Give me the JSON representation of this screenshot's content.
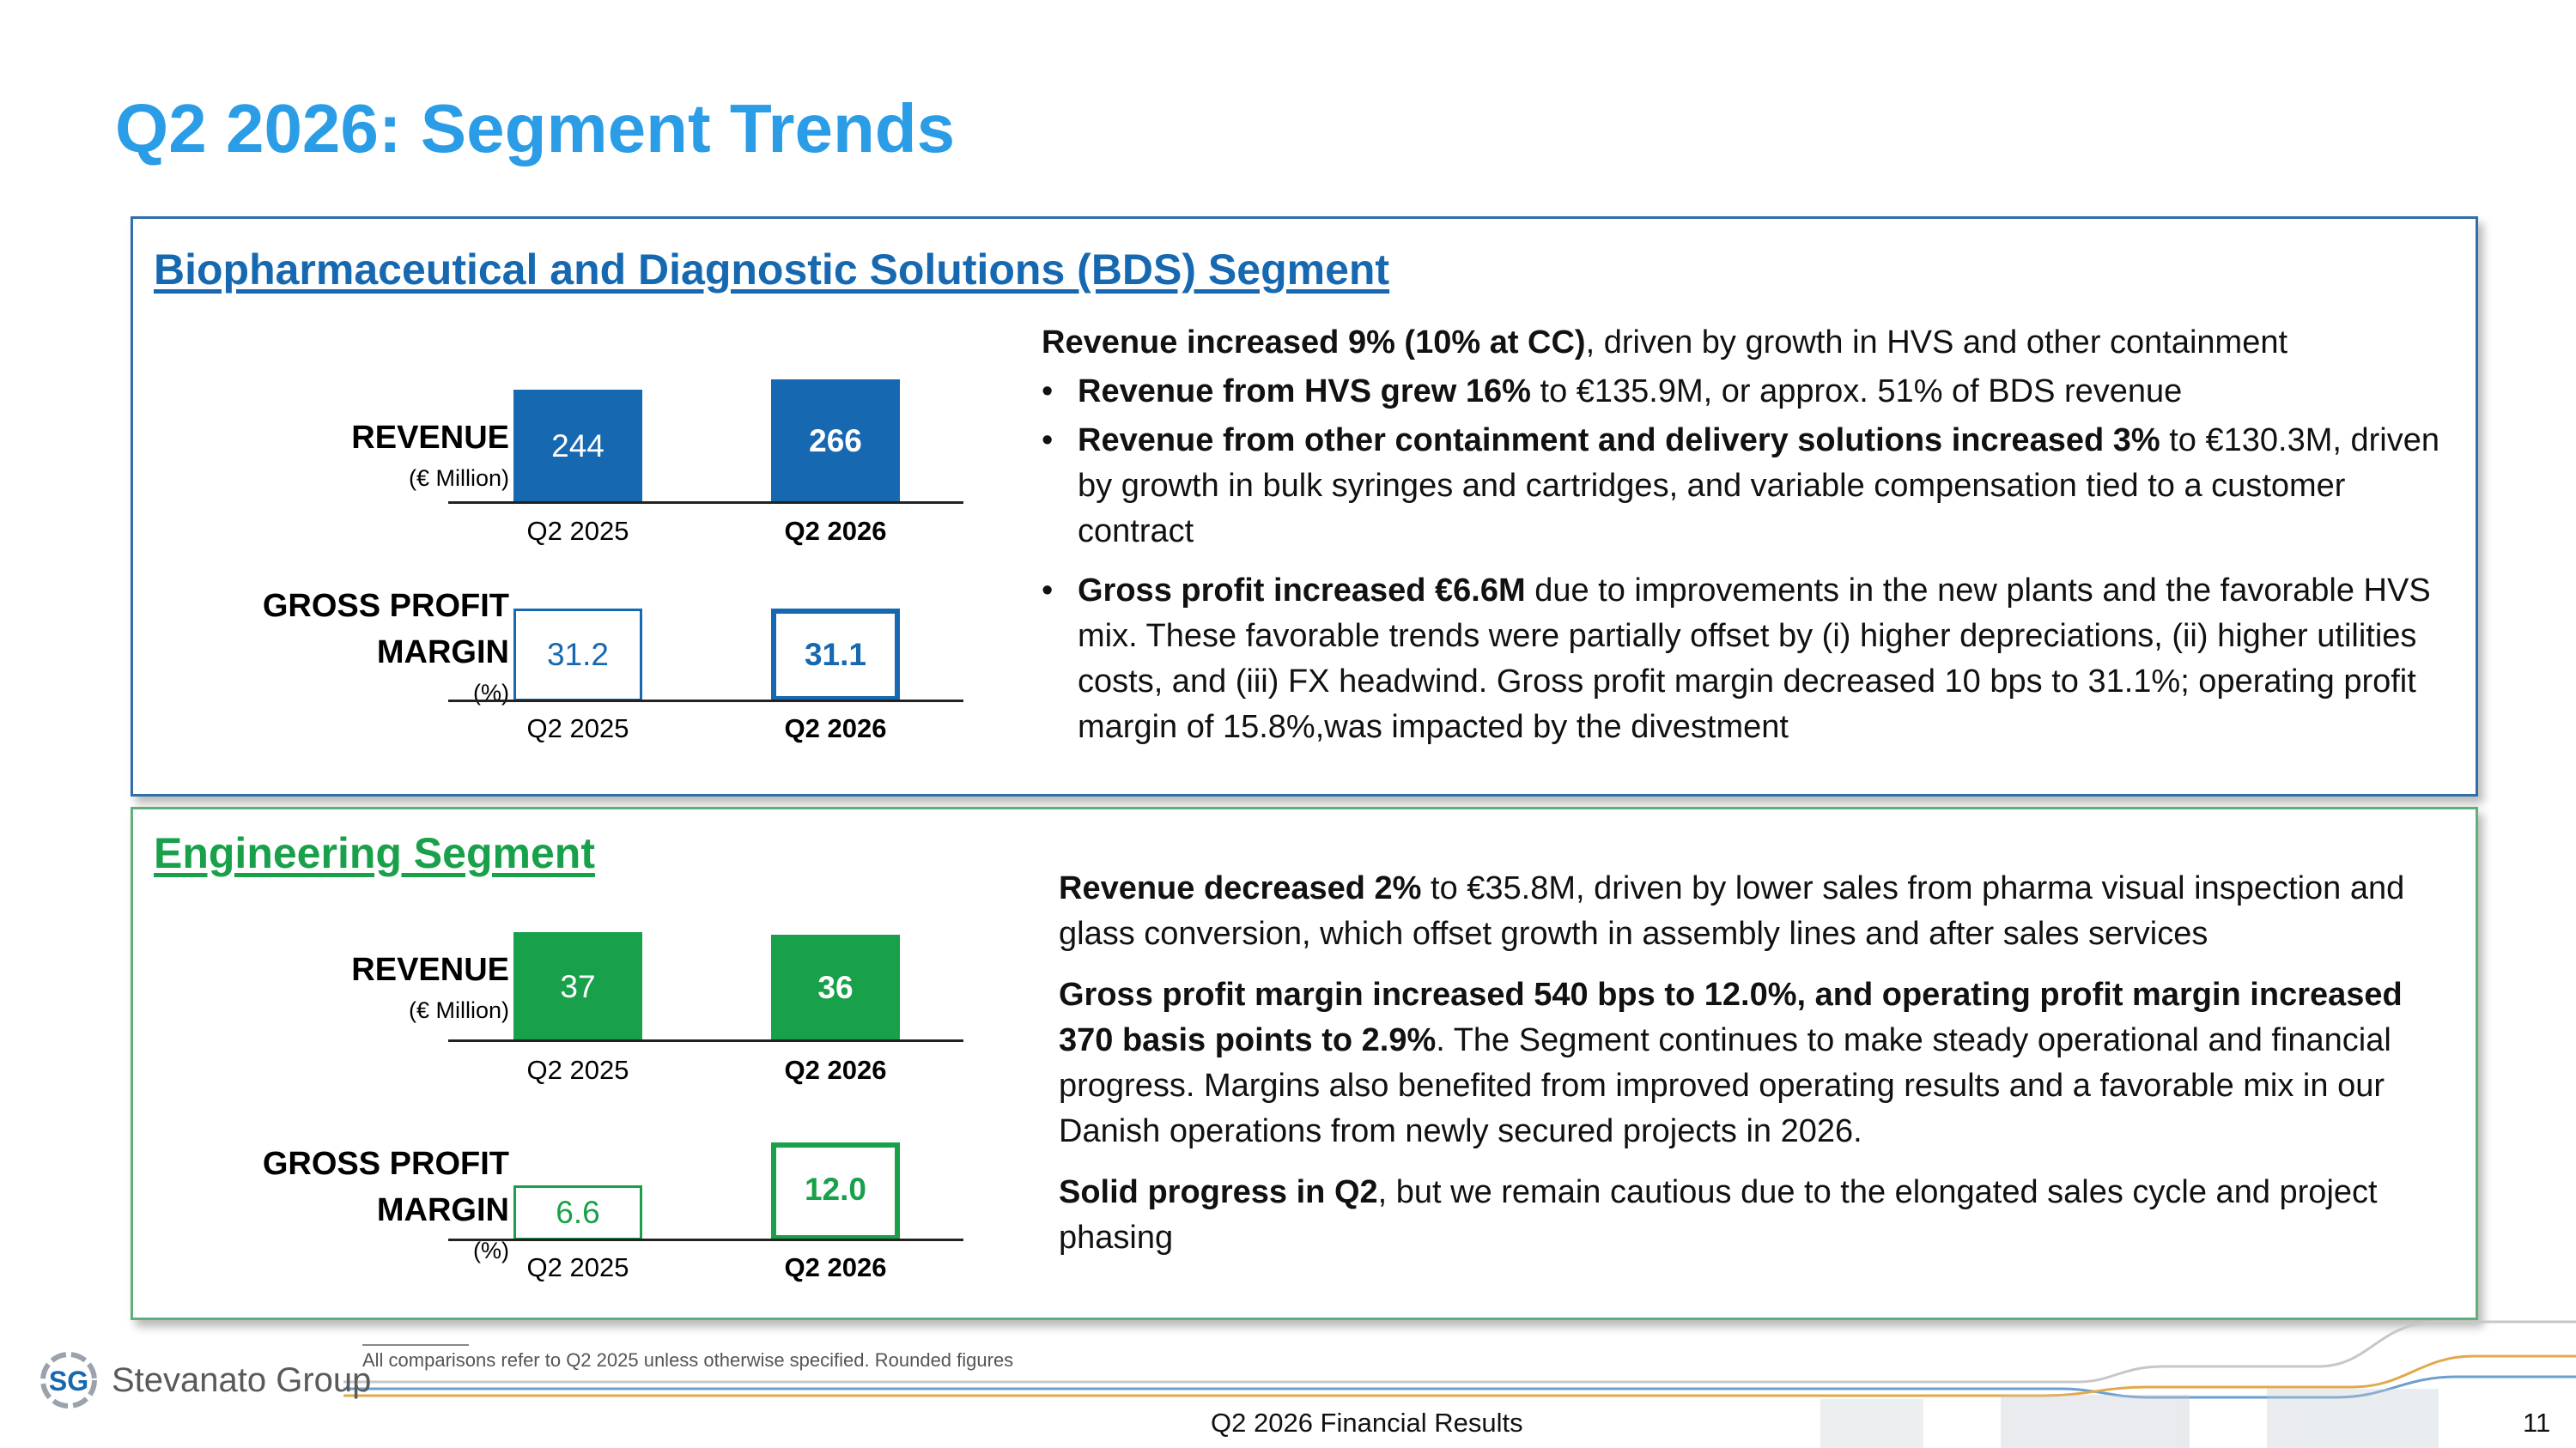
{
  "title": "Q2 2026: Segment Trends",
  "colors": {
    "title": "#2a9de6",
    "bds": "#1668b0",
    "engineering": "#19a04a"
  },
  "bds": {
    "heading": "Biopharmaceutical and Diagnostic Solutions (BDS) Segment",
    "revenue": {
      "label": "REVENUE",
      "unit": "(€ Million)",
      "bars": [
        {
          "period": "Q2 2025",
          "value": "244"
        },
        {
          "period": "Q2 2026",
          "value": "266"
        }
      ]
    },
    "gpm": {
      "label_line1": "GROSS PROFIT",
      "label_line2": "MARGIN",
      "unit": "(%)",
      "bars": [
        {
          "period": "Q2 2025",
          "value": "31.2"
        },
        {
          "period": "Q2 2026",
          "value": "31.1"
        }
      ]
    },
    "text": {
      "intro_bold": "Revenue increased 9% (10% at CC)",
      "intro_rest": ", driven by growth in HVS and other containment",
      "b1_bold": "Revenue from HVS grew 16%",
      "b1_rest": " to €135.9M, or approx. 51% of BDS revenue",
      "b2_bold": "Revenue from other containment and delivery solutions increased 3%",
      "b2_rest": " to €130.3M, driven by growth in bulk syringes and cartridges, and variable compensation tied to a customer contract",
      "b3_bold": "Gross profit increased €6.6M",
      "b3_rest": " due to improvements in the new plants and the favorable HVS mix. These favorable trends were partially offset by (i) higher depreciations, (ii) higher utilities costs, and (iii) FX headwind. Gross profit margin decreased 10 bps to 31.1%; operating profit margin of 15.8%,was impacted by the divestment"
    }
  },
  "engineering": {
    "heading": "Engineering Segment",
    "revenue": {
      "label": "REVENUE",
      "unit": "(€ Million)",
      "bars": [
        {
          "period": "Q2 2025",
          "value": "37"
        },
        {
          "period": "Q2 2026",
          "value": "36"
        }
      ]
    },
    "gpm": {
      "label_line1": "GROSS PROFIT",
      "label_line2": "MARGIN",
      "unit": "(%)",
      "bars": [
        {
          "period": "Q2 2025",
          "value": "6.6"
        },
        {
          "period": "Q2 2026",
          "value": "12.0"
        }
      ]
    },
    "text": {
      "p1_bold": "Revenue decreased 2%",
      "p1_rest": " to €35.8M, driven by lower sales from pharma visual inspection and glass conversion, which offset growth in assembly lines and after sales services",
      "p2_bold": "Gross profit margin increased 540 bps to 12.0%, and operating profit margin increased 370 basis points to 2.9%",
      "p2_rest": ". The Segment continues to make steady operational and financial progress. Margins also benefited from improved operating results and a favorable mix in our Danish operations from newly secured projects in 2026.",
      "p3_bold": "Solid progress in Q2",
      "p3_rest": ", but we remain cautious due to the elongated sales cycle and project phasing"
    }
  },
  "footer": {
    "footnote": "All comparisons refer to Q2 2025 unless otherwise specified. Rounded figures",
    "logo_mark": "SG",
    "logo_text": "Stevanato Group",
    "center": "Q2 2026 Financial Results",
    "page_number": "11"
  }
}
